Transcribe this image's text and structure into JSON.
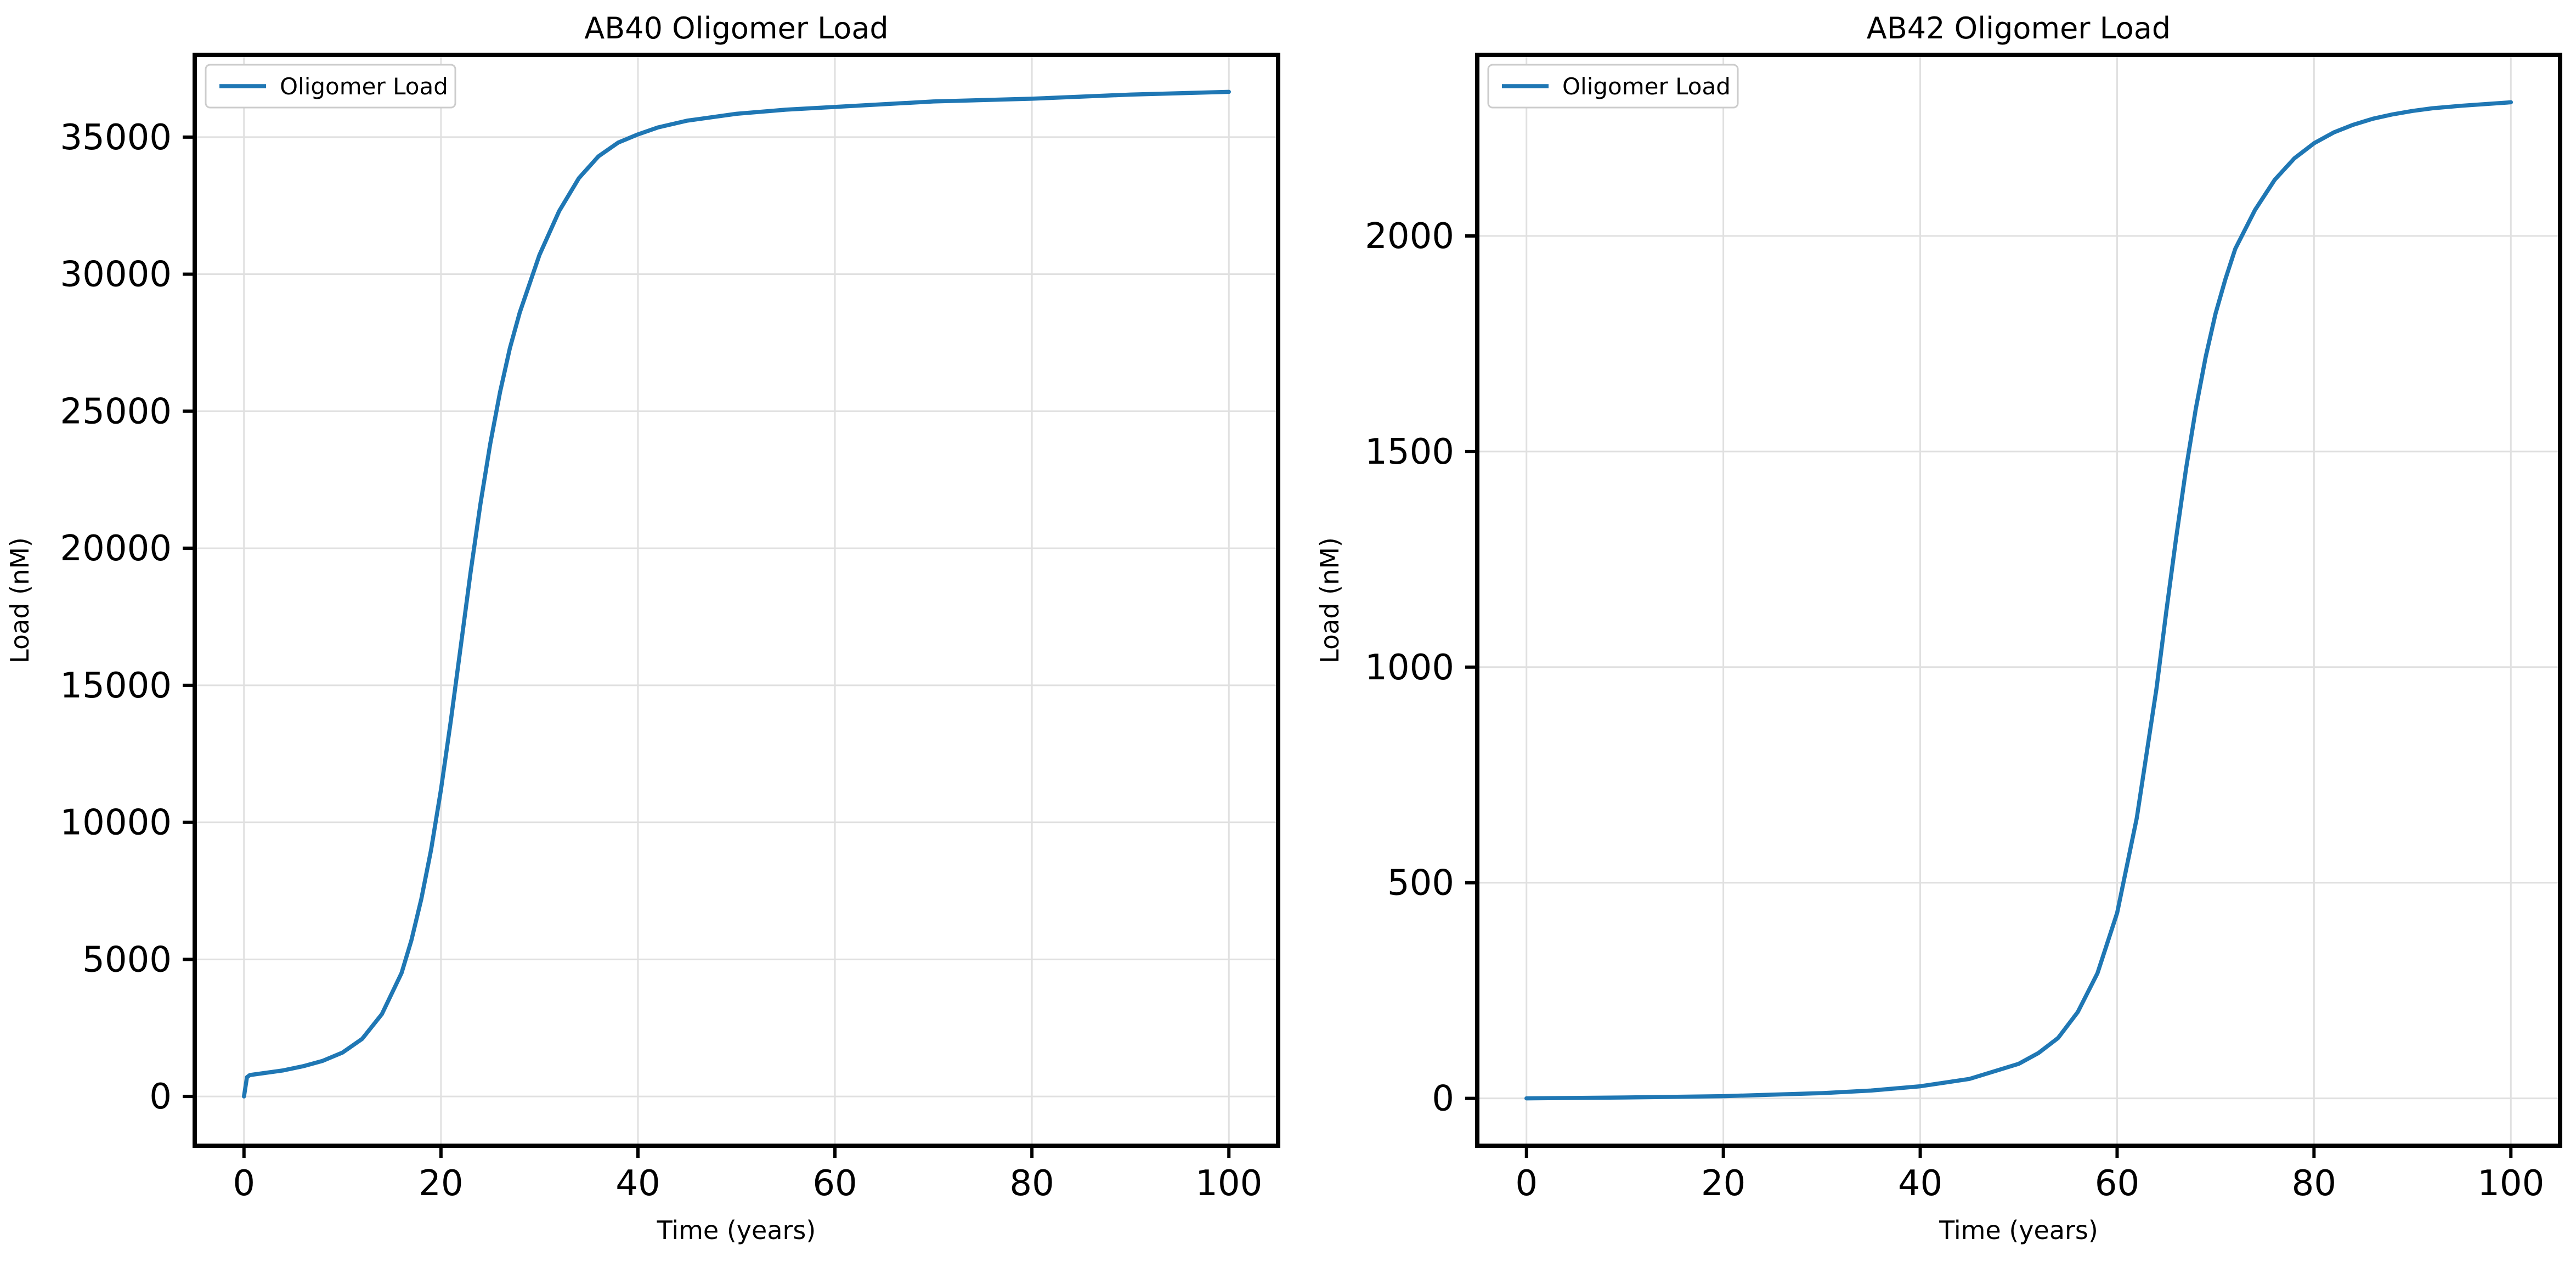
{
  "colors": {
    "series": "#1f77b4",
    "grid": "#e0e0e0"
  },
  "chart_data": [
    {
      "type": "line",
      "title": "AB40 Oligomer Load",
      "xlabel": "Time (years)",
      "ylabel": "Load (nM)",
      "xlim": [
        -5,
        105
      ],
      "ylim": [
        -1800,
        38000
      ],
      "xticks": [
        "0",
        "20",
        "40",
        "60",
        "80",
        "100"
      ],
      "yticks": [
        "0",
        "5000",
        "10000",
        "15000",
        "20000",
        "25000",
        "30000",
        "35000"
      ],
      "grid": true,
      "legend": {
        "placement": "top-left",
        "entries": [
          "Oligomer Load"
        ]
      },
      "series": [
        {
          "name": "Oligomer Load",
          "x": [
            0,
            0.3,
            0.6,
            2,
            4,
            6,
            8,
            10,
            12,
            14,
            16,
            17,
            18,
            19,
            20,
            21,
            22,
            23,
            24,
            25,
            26,
            27,
            28,
            30,
            32,
            34,
            36,
            38,
            40,
            42,
            45,
            50,
            55,
            60,
            70,
            80,
            90,
            100
          ],
          "y": [
            0,
            700,
            780,
            850,
            950,
            1100,
            1300,
            1600,
            2100,
            3000,
            4500,
            5700,
            7200,
            9000,
            11200,
            13700,
            16400,
            19100,
            21600,
            23800,
            25700,
            27300,
            28600,
            30700,
            32300,
            33500,
            34300,
            34800,
            35100,
            35350,
            35600,
            35850,
            36000,
            36100,
            36300,
            36400,
            36550,
            36650
          ]
        }
      ]
    },
    {
      "type": "line",
      "title": "AB42 Oligomer Load",
      "xlabel": "Time (years)",
      "ylabel": "Load (nM)",
      "xlim": [
        -5,
        105
      ],
      "ylim": [
        -110,
        2420
      ],
      "xticks": [
        "0",
        "20",
        "40",
        "60",
        "80",
        "100"
      ],
      "yticks": [
        "0",
        "500",
        "1000",
        "1500",
        "2000"
      ],
      "grid": true,
      "legend": {
        "placement": "top-left",
        "entries": [
          "Oligomer Load"
        ]
      },
      "series": [
        {
          "name": "Oligomer Load",
          "x": [
            0,
            10,
            20,
            30,
            35,
            40,
            45,
            50,
            52,
            54,
            56,
            58,
            60,
            62,
            64,
            65,
            66,
            67,
            68,
            69,
            70,
            71,
            72,
            74,
            76,
            78,
            80,
            82,
            84,
            86,
            88,
            90,
            92,
            95,
            100
          ],
          "y": [
            0,
            2,
            5,
            12,
            18,
            28,
            45,
            80,
            105,
            140,
            200,
            290,
            430,
            650,
            950,
            1130,
            1300,
            1460,
            1600,
            1720,
            1820,
            1900,
            1970,
            2060,
            2130,
            2180,
            2215,
            2240,
            2258,
            2272,
            2282,
            2290,
            2296,
            2302,
            2310
          ]
        }
      ]
    }
  ]
}
